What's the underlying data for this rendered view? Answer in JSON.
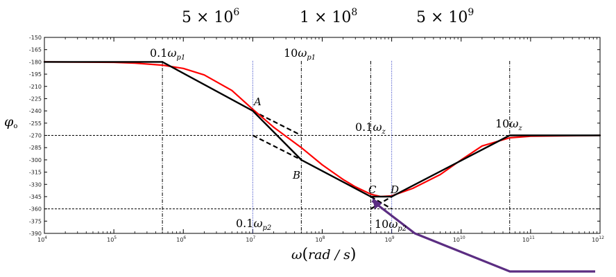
{
  "chart_data": {
    "type": "line",
    "x_scale": "log",
    "xlim": [
      10000,
      1000000000000
    ],
    "ylim": [
      -390,
      -150
    ],
    "yticks": [
      -150,
      -165,
      -180,
      -195,
      -210,
      -225,
      -240,
      -255,
      -270,
      -285,
      -300,
      -315,
      -330,
      -345,
      -360,
      -375,
      -390
    ],
    "xticks": [
      {
        "base": "10",
        "exp": "4",
        "value": 10000
      },
      {
        "base": "10",
        "exp": "5",
        "value": 100000
      },
      {
        "base": "10",
        "exp": "6",
        "value": 1000000
      },
      {
        "base": "10",
        "exp": "7",
        "value": 10000000
      },
      {
        "base": "10",
        "exp": "8",
        "value": 100000000
      },
      {
        "base": "10",
        "exp": "9",
        "value": 1000000000
      },
      {
        "base": "10",
        "exp": "10",
        "value": 10000000000
      },
      {
        "base": "10",
        "exp": "11",
        "value": 100000000000
      },
      {
        "base": "10",
        "exp": "12",
        "value": 1000000000000
      }
    ],
    "ylabel": {
      "symbol": "φ",
      "sub": "o"
    },
    "xlabel": {
      "symbol": "ω",
      "open": "(",
      "unit": "rad / s",
      "close": ")"
    },
    "top_labels": [
      {
        "mantissa": "5 × 10",
        "exp": "6"
      },
      {
        "mantissa": "1 × 10",
        "exp": "8"
      },
      {
        "mantissa": "5 × 10",
        "exp": "9"
      }
    ],
    "series": [
      {
        "role": "exact",
        "color": "#ff0000",
        "x": [
          10000,
          100000,
          200000,
          500000,
          1000000,
          2000000,
          5000000,
          10000000,
          20000000,
          50000000,
          100000000,
          200000000,
          300000000,
          500000000,
          700000000,
          1000000000,
          2000000000,
          5000000000,
          10000000000,
          20000000000,
          50000000000,
          100000000000,
          1000000000000
        ],
        "y": [
          -180,
          -180.5,
          -181.5,
          -184,
          -188,
          -196,
          -215,
          -238,
          -260,
          -285,
          -306,
          -324,
          -333,
          -342,
          -345,
          -344,
          -335,
          -318,
          -300,
          -283,
          -273,
          -271,
          -270
        ]
      },
      {
        "role": "asymptotic",
        "color": "#000000",
        "x": [
          10000,
          500000,
          10000000,
          50000000,
          500000000,
          1000000000,
          50000000000,
          1000000000000
        ],
        "y": [
          -180,
          -180,
          -240,
          -300,
          -345,
          -345,
          -270,
          -270
        ]
      }
    ],
    "dashed_lines": [
      {
        "x": [
          10000000,
          50000000
        ],
        "y": [
          -240,
          -270
        ]
      },
      {
        "x": [
          10000000,
          50000000
        ],
        "y": [
          -270,
          -300
        ]
      },
      {
        "x": [
          500000000,
          1000000000
        ],
        "y": [
          -360,
          -345
        ]
      },
      {
        "x": [
          500000000,
          1000000000
        ],
        "y": [
          -345,
          -360
        ]
      }
    ],
    "hlines": [
      -270,
      -360
    ],
    "vlines_dashdot": [
      500000,
      50000000,
      500000000,
      50000000000
    ],
    "vlines_dotted": [
      10000000,
      1000000000
    ],
    "points": [
      {
        "label": "A",
        "x": 10000000,
        "y": -240
      },
      {
        "label": "B",
        "x": 50000000,
        "y": -300
      },
      {
        "label": "C",
        "x": 500000000,
        "y": -345
      },
      {
        "label": "D",
        "x": 1000000000,
        "y": -345
      }
    ],
    "annotations": [
      {
        "coef": "0.1",
        "sym": "ω",
        "sub": "p1"
      },
      {
        "coef": "10",
        "sym": "ω",
        "sub": "p1"
      },
      {
        "coef": "0.1",
        "sym": "ω",
        "sub": "z"
      },
      {
        "coef": "10",
        "sym": "ω",
        "sub": "z"
      },
      {
        "coef": "0.1",
        "sym": "ω",
        "sub": "p2"
      },
      {
        "coef": "10",
        "sym": "ω",
        "sub": "p2"
      }
    ],
    "overlay_color": "#5b2d82",
    "grid": false,
    "legend": "none"
  }
}
